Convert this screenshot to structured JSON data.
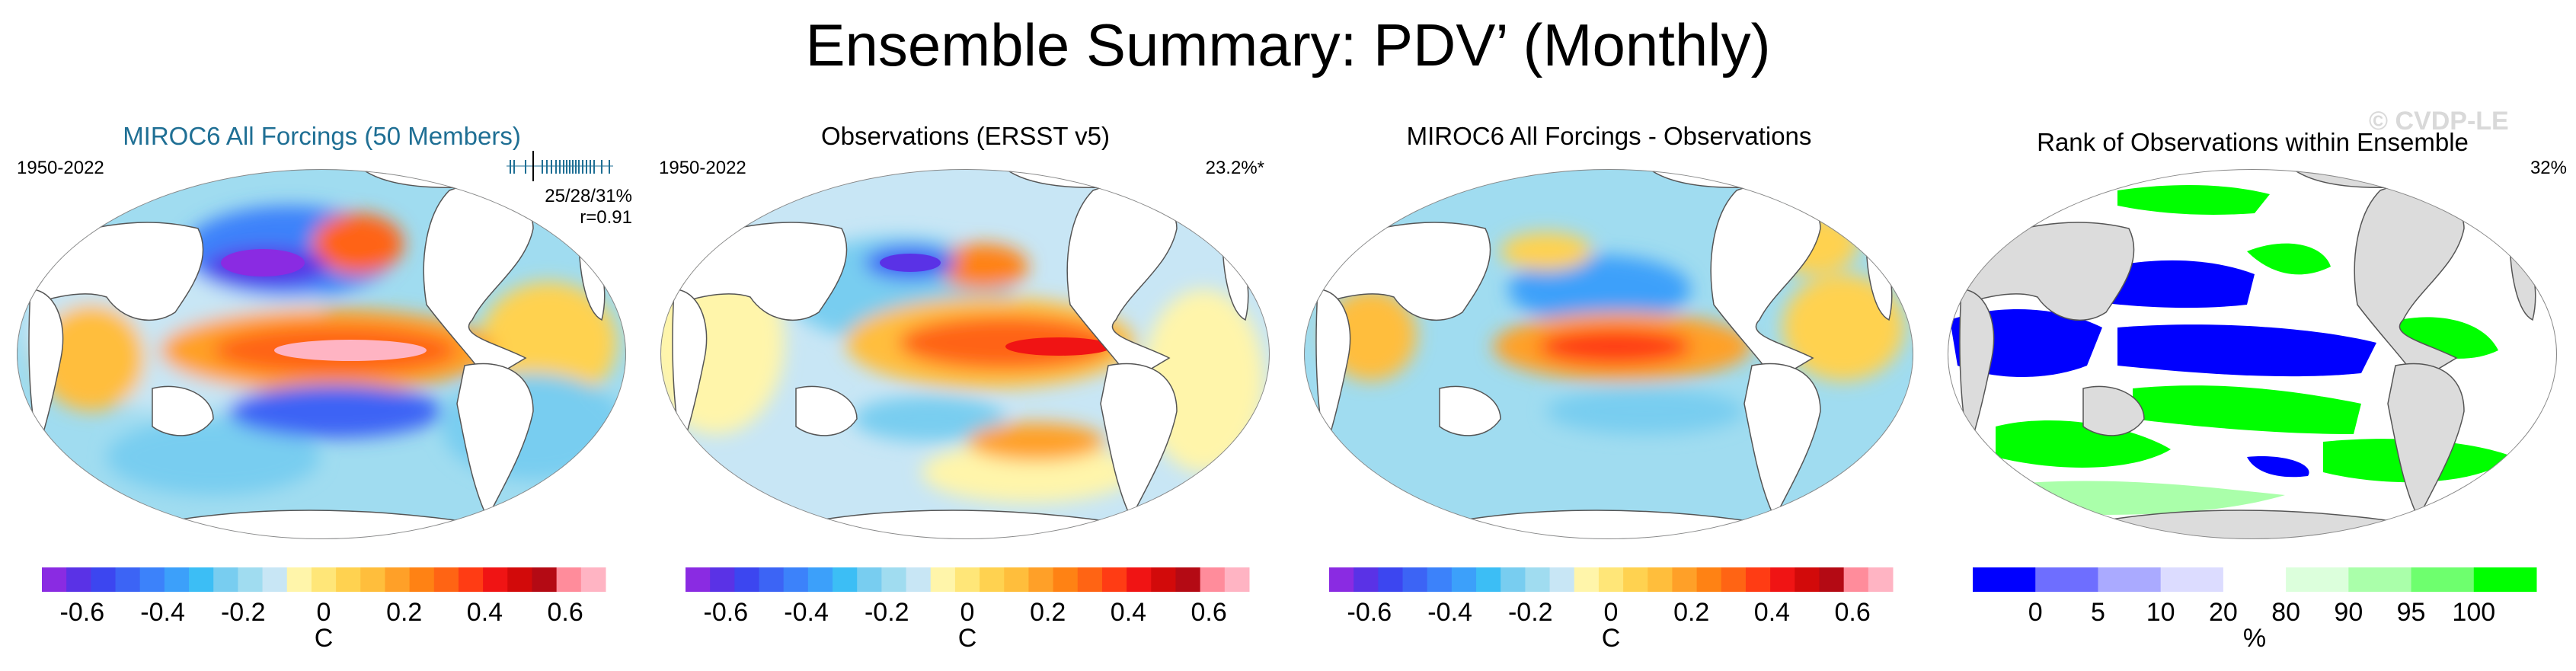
{
  "title": "Ensemble Summary: PDV’ (Monthly)",
  "watermark": "© CVDP-LE",
  "chart_data": [
    {
      "type": "heatmap",
      "title": "MIROC6 All Forcings (50 Members)",
      "period": "1950-2022",
      "stats_label": "25/28/31%",
      "correlation": "r=0.91",
      "colorbar": {
        "ticks": [
          "-0.6",
          "-0.4",
          "-0.2",
          "0",
          "0.2",
          "0.4",
          "0.6"
        ],
        "unit": "C",
        "range": [
          -0.7,
          0.7
        ]
      }
    },
    {
      "type": "heatmap",
      "title": "Observations (ERSST v5)",
      "period": "1950-2022",
      "variance_label": "23.2%*",
      "colorbar": {
        "ticks": [
          "-0.6",
          "-0.4",
          "-0.2",
          "0",
          "0.2",
          "0.4",
          "0.6"
        ],
        "unit": "C",
        "range": [
          -0.7,
          0.7
        ]
      }
    },
    {
      "type": "heatmap",
      "title": "MIROC6 All Forcings - Observations",
      "colorbar": {
        "ticks": [
          "-0.6",
          "-0.4",
          "-0.2",
          "0",
          "0.2",
          "0.4",
          "0.6"
        ],
        "unit": "C",
        "range": [
          -0.7,
          0.7
        ]
      }
    },
    {
      "type": "heatmap",
      "title": "Rank of Observations within Ensemble",
      "percent_label": "32%",
      "colorbar": {
        "ticks": [
          "0",
          "5",
          "10",
          "20",
          "80",
          "90",
          "95",
          "100"
        ],
        "unit": "%"
      }
    }
  ],
  "colors": {
    "diverging": [
      "#8a2be2",
      "#5a32e6",
      "#3c46f0",
      "#3c64f5",
      "#3c82fa",
      "#3ca0fa",
      "#3cbef5",
      "#78cdf0",
      "#a0dcf0",
      "#c8e6f5",
      "#fff5aa",
      "#ffe678",
      "#ffd250",
      "#ffbe3c",
      "#ffa028",
      "#ff8214",
      "#ff6414",
      "#ff3c14",
      "#f01414",
      "#d20a0a",
      "#b40a14",
      "#ff8c9b",
      "#ffb4c3"
    ],
    "rank": [
      "#0000ff",
      "#6e6eff",
      "#aaaaff",
      "#dcdcff",
      "#ffffff",
      "#dcffdc",
      "#aaffaa",
      "#6eff6e",
      "#00ff00"
    ],
    "land": "#ffffff",
    "land_rank": "#dcdcdc"
  }
}
